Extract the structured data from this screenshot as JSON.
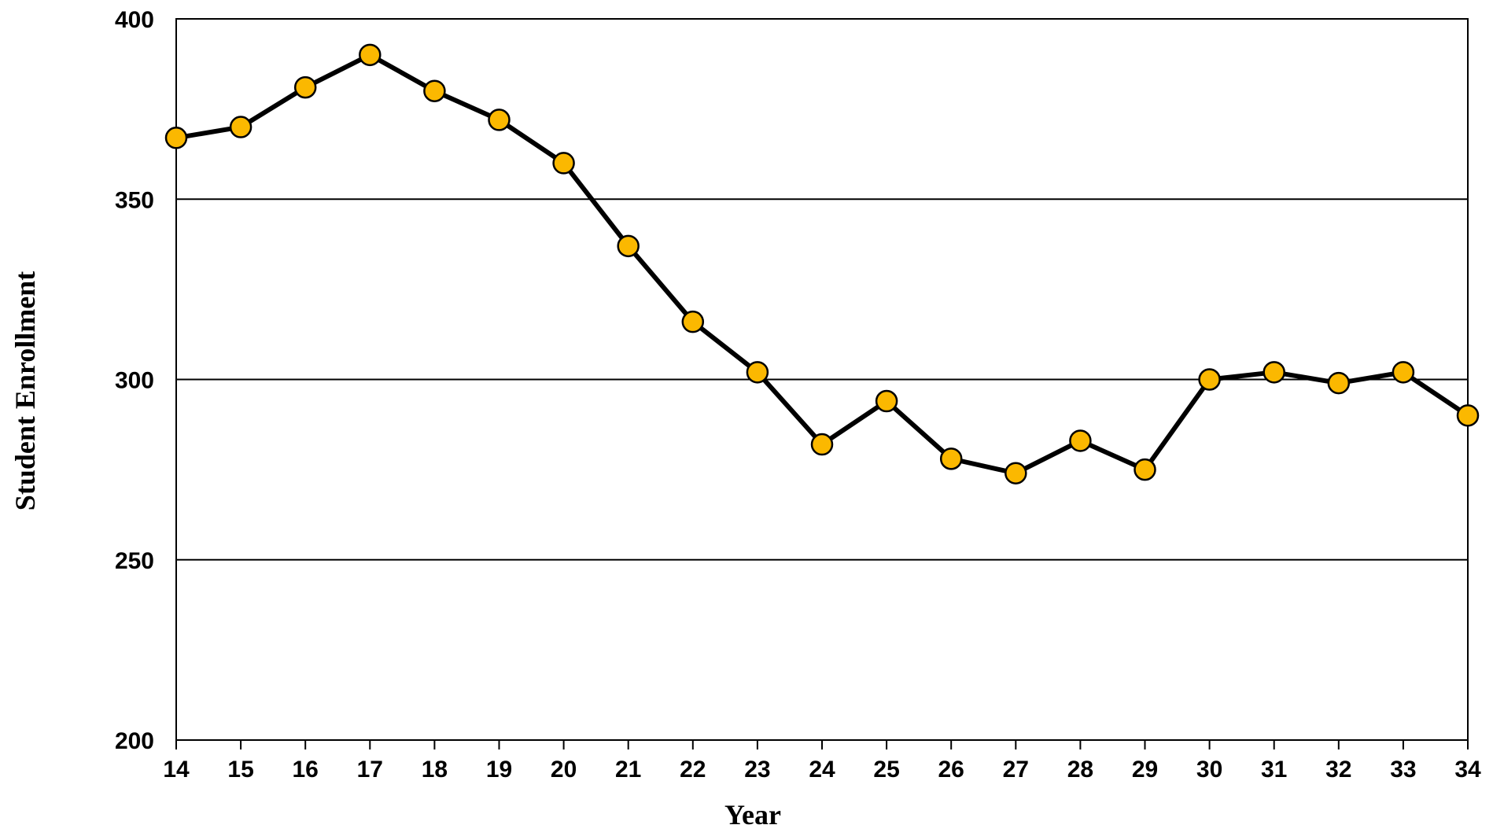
{
  "chart_data": {
    "type": "line",
    "x_label": "Year",
    "y_label": "Student Enrollment",
    "x": [
      14,
      15,
      16,
      17,
      18,
      19,
      20,
      21,
      22,
      23,
      24,
      25,
      26,
      27,
      28,
      29,
      30,
      31,
      32,
      33,
      34
    ],
    "series": [
      {
        "name": "Student Enrollment",
        "color": "#000000",
        "marker_color": "#fbb800",
        "values": [
          367,
          370,
          381,
          390,
          380,
          372,
          360,
          337,
          316,
          302,
          282,
          294,
          278,
          274,
          283,
          275,
          300,
          302,
          299,
          302,
          290
        ]
      }
    ],
    "xlim": [
      14,
      34
    ],
    "xticks": [
      14,
      15,
      16,
      17,
      18,
      19,
      20,
      21,
      22,
      23,
      24,
      25,
      26,
      27,
      28,
      29,
      30,
      31,
      32,
      33,
      34
    ],
    "ylim": [
      200,
      400
    ],
    "yticks": [
      200,
      250,
      300,
      350,
      400
    ],
    "grid": true
  }
}
